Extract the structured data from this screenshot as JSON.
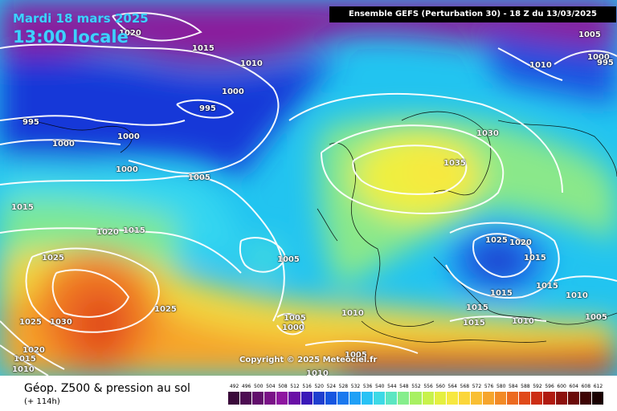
{
  "header": {
    "date": "Mardi 18 mars 2025",
    "time": "13:00 locale",
    "run": "Ensemble GEFS  (Perturbation 30)  -  18 Z du 13/03/2025"
  },
  "footer": {
    "param_title": "Géop. Z500 & pression au sol",
    "lead_time": "(+ 114h)",
    "copyright": "Copyright © 2025 Meteociel.fr"
  },
  "legend": {
    "labels": [
      "492",
      "496",
      "500",
      "504",
      "508",
      "512",
      "516",
      "520",
      "524",
      "528",
      "532",
      "536",
      "540",
      "544",
      "548",
      "552",
      "556",
      "560",
      "564",
      "568",
      "572",
      "576",
      "580",
      "584",
      "588",
      "592",
      "596",
      "600",
      "604",
      "608",
      "612"
    ],
    "colors": [
      "#3a0a3a",
      "#4d0d52",
      "#620f6c",
      "#7a1287",
      "#8e16a0",
      "#6a10a6",
      "#3a18b8",
      "#1f3fcf",
      "#1656e0",
      "#1a78ee",
      "#20a0f6",
      "#28c2f5",
      "#3dd9e6",
      "#5ce6c2",
      "#86ee8c",
      "#a8f062",
      "#c8f24c",
      "#e4f040",
      "#f7e840",
      "#fbd63a",
      "#f9bf33",
      "#f6a52c",
      "#f28a26",
      "#ec6a20",
      "#e04a1a",
      "#cc2d14",
      "#b01a10",
      "#8c100c",
      "#6a0a08",
      "#3e0404",
      "#1a0000"
    ]
  },
  "isobars": [
    {
      "label": "1020",
      "color": "white"
    },
    {
      "label": "1015",
      "color": "white"
    },
    {
      "label": "1010",
      "color": "white"
    },
    {
      "label": "1000",
      "color": "white"
    },
    {
      "label": "995",
      "color": "white"
    },
    {
      "label": "995",
      "color": "white"
    },
    {
      "label": "1000",
      "color": "white"
    },
    {
      "label": "1000",
      "color": "white"
    },
    {
      "label": "1000",
      "color": "white"
    },
    {
      "label": "1005",
      "color": "white"
    },
    {
      "label": "1015",
      "color": "white"
    },
    {
      "label": "1020",
      "color": "white"
    },
    {
      "label": "1015",
      "color": "white"
    },
    {
      "label": "1025",
      "color": "white"
    },
    {
      "label": "1025",
      "color": "white"
    },
    {
      "label": "1025",
      "color": "white"
    },
    {
      "label": "1030",
      "color": "white"
    },
    {
      "label": "1020",
      "color": "white"
    },
    {
      "label": "1015",
      "color": "white"
    },
    {
      "label": "1010",
      "color": "white"
    },
    {
      "label": "1005",
      "color": "white"
    },
    {
      "label": "1005",
      "color": "white"
    },
    {
      "label": "1000",
      "color": "white"
    },
    {
      "label": "1010",
      "color": "white"
    },
    {
      "label": "1005",
      "color": "white"
    },
    {
      "label": "1010",
      "color": "white"
    },
    {
      "label": "1030",
      "color": "white"
    },
    {
      "label": "1035",
      "color": "white"
    },
    {
      "label": "1025",
      "color": "white"
    },
    {
      "label": "1020",
      "color": "white"
    },
    {
      "label": "1015",
      "color": "white"
    },
    {
      "label": "1015",
      "color": "white"
    },
    {
      "label": "1015",
      "color": "white"
    },
    {
      "label": "1015",
      "color": "white"
    },
    {
      "label": "1015",
      "color": "white"
    },
    {
      "label": "1010",
      "color": "white"
    },
    {
      "label": "1010",
      "color": "white"
    },
    {
      "label": "1005",
      "color": "white"
    },
    {
      "label": "1005",
      "color": "white"
    },
    {
      "label": "1000",
      "color": "white"
    },
    {
      "label": "995",
      "color": "white"
    },
    {
      "label": "1010",
      "color": "white"
    }
  ]
}
